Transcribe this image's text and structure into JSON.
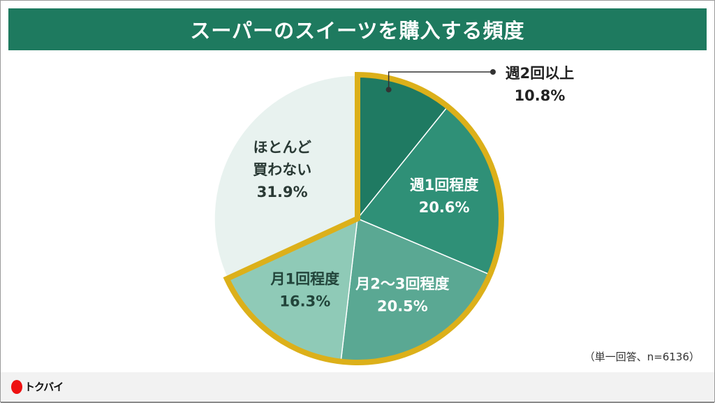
{
  "title": "スーパーのスイーツを購入する頻度",
  "note": "（単一回答、n=6136）",
  "logo": "トクバイ",
  "colors": {
    "title_bg": "#1e7a5f",
    "highlight": "#dcb01a"
  },
  "chart_data": {
    "type": "pie",
    "title": "スーパーのスイーツを購入する頻度",
    "start": "12 o'clock, clockwise",
    "slices": [
      {
        "label": "週2回以上",
        "value": 10.8,
        "value_label": "10.8%",
        "color": "#1f7a62",
        "text_color": "#222",
        "highlighted": true
      },
      {
        "label": "週1回程度",
        "value": 20.6,
        "value_label": "20.6%",
        "color": "#2f9077",
        "text_color": "#ffffff",
        "highlighted": true
      },
      {
        "label": "月2〜3回程度",
        "value": 20.5,
        "value_label": "20.5%",
        "color": "#5aa893",
        "text_color": "#ffffff",
        "highlighted": true
      },
      {
        "label": "月1回程度",
        "value": 16.3,
        "value_label": "16.3%",
        "color": "#8fcab7",
        "text_color": "#22443a",
        "highlighted": true
      },
      {
        "label": "ほとんど\n買わない",
        "value": 31.9,
        "value_label": "31.9%",
        "color": "#e8f2ef",
        "text_color": "#2a3a35",
        "highlighted": false
      }
    ]
  }
}
